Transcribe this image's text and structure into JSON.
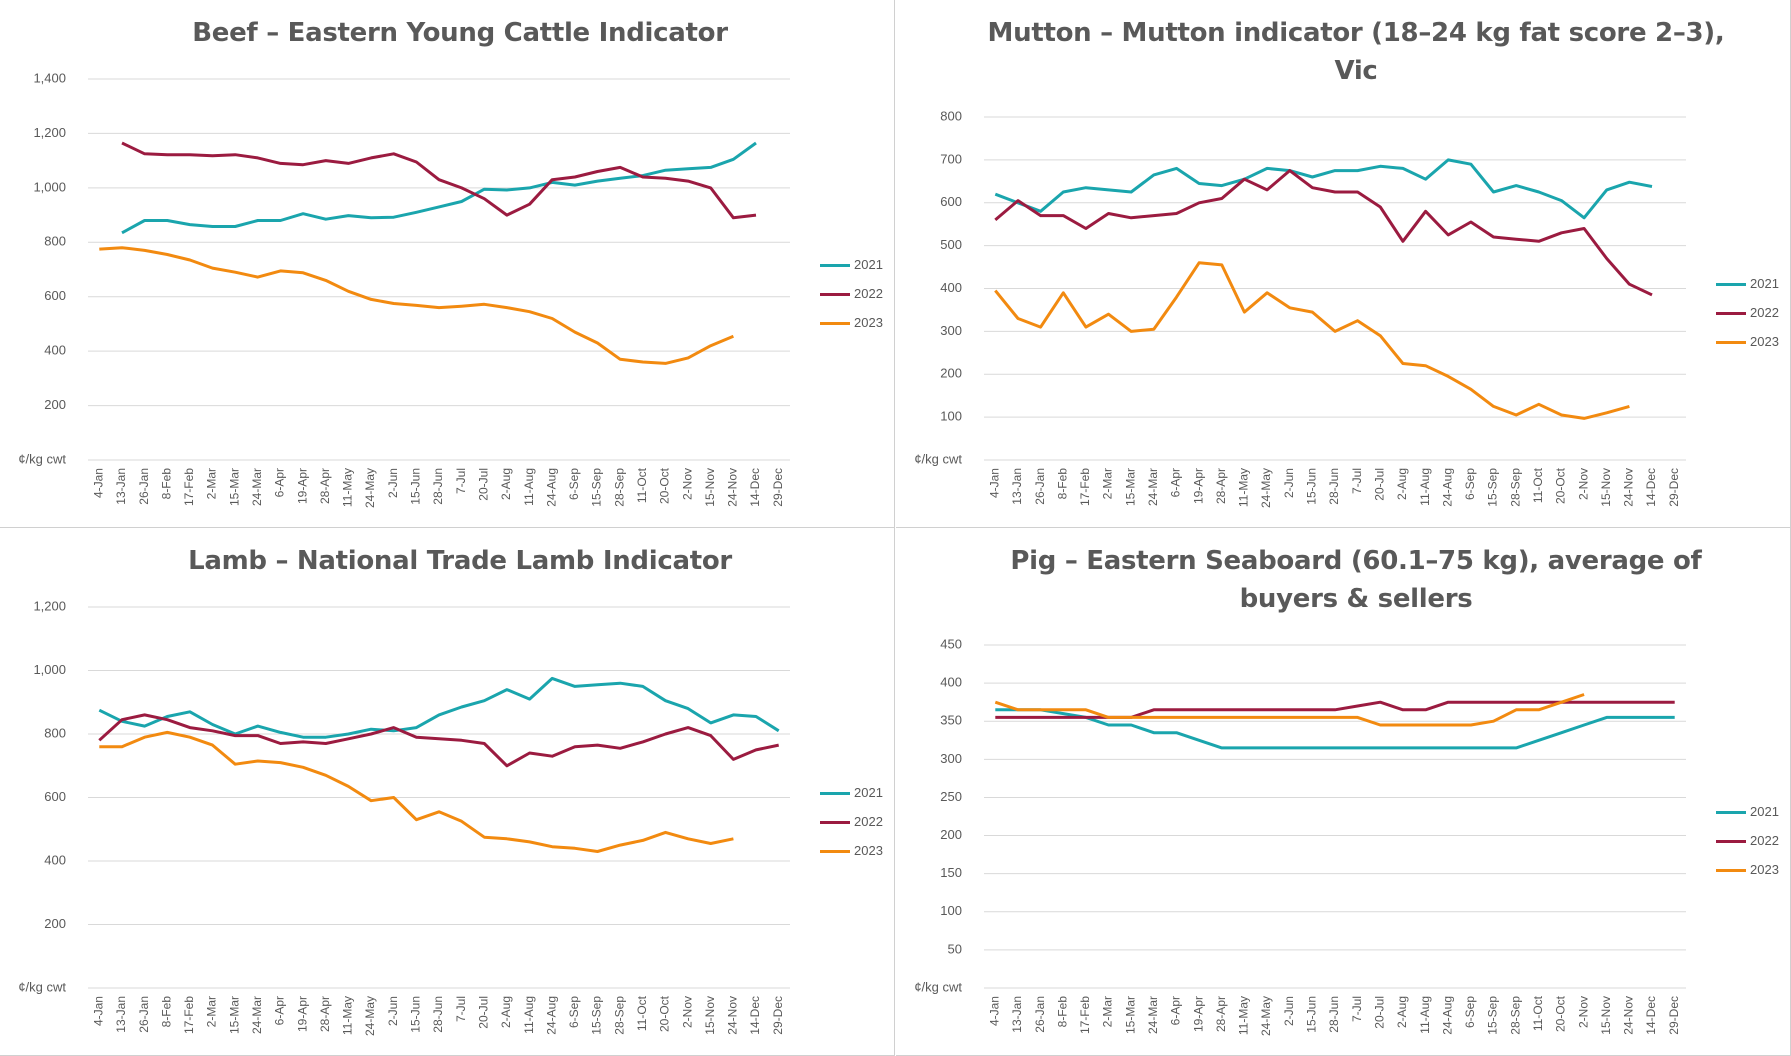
{
  "chart_data": [
    {
      "type": "line",
      "title": "Beef – Eastern Young Cattle Indicator",
      "categories": [
        "4-Jan",
        "13-Jan",
        "26-Jan",
        "8-Feb",
        "17-Feb",
        "2-Mar",
        "15-Mar",
        "24-Mar",
        "6-Apr",
        "19-Apr",
        "28-Apr",
        "11-May",
        "24-May",
        "2-Jun",
        "15-Jun",
        "28-Jun",
        "7-Jul",
        "20-Jul",
        "2-Aug",
        "11-Aug",
        "24-Aug",
        "6-Sep",
        "15-Sep",
        "28-Sep",
        "11-Oct",
        "20-Oct",
        "2-Nov",
        "15-Nov",
        "24-Nov",
        "14-Dec",
        "29-Dec"
      ],
      "series": [
        {
          "name": "2021",
          "color": "#1aa5ad",
          "values": [
            null,
            835,
            880,
            880,
            865,
            858,
            858,
            880,
            880,
            905,
            885,
            898,
            890,
            892,
            910,
            930,
            950,
            995,
            992,
            1000,
            1020,
            1010,
            1025,
            1035,
            1045,
            1065,
            1070,
            1075,
            1105,
            1165,
            null
          ]
        },
        {
          "name": "2022",
          "color": "#9b1b40",
          "values": [
            null,
            1165,
            1125,
            1122,
            1122,
            1118,
            1122,
            1110,
            1090,
            1085,
            1100,
            1090,
            1110,
            1125,
            1095,
            1030,
            1000,
            960,
            900,
            940,
            1030,
            1040,
            1060,
            1075,
            1040,
            1035,
            1025,
            1000,
            890,
            900,
            null
          ]
        },
        {
          "name": "2023",
          "color": "#f28a10",
          "values": [
            775,
            780,
            770,
            755,
            735,
            705,
            690,
            672,
            695,
            688,
            660,
            620,
            590,
            575,
            568,
            560,
            565,
            572,
            560,
            545,
            520,
            470,
            430,
            370,
            360,
            355,
            375,
            420,
            455,
            null,
            null
          ]
        }
      ],
      "ylim": [
        0,
        1400
      ],
      "yticks": [
        {
          "value": 0,
          "label": "¢/kg cwt"
        },
        {
          "value": 200,
          "label": "200"
        },
        {
          "value": 400,
          "label": "400"
        },
        {
          "value": 600,
          "label": "600"
        },
        {
          "value": 800,
          "label": "800"
        },
        {
          "value": 1000,
          "label": "1,000"
        },
        {
          "value": 1200,
          "label": "1,200"
        },
        {
          "value": 1400,
          "label": "1,400"
        }
      ],
      "grid": true,
      "legend": "right"
    },
    {
      "type": "line",
      "title": "Mutton – Mutton indicator (18–24 kg fat score 2–3), Vic",
      "categories": [
        "4-Jan",
        "13-Jan",
        "26-Jan",
        "8-Feb",
        "17-Feb",
        "2-Mar",
        "15-Mar",
        "24-Mar",
        "6-Apr",
        "19-Apr",
        "28-Apr",
        "11-May",
        "24-May",
        "2-Jun",
        "15-Jun",
        "28-Jun",
        "7-Jul",
        "20-Jul",
        "2-Aug",
        "11-Aug",
        "24-Aug",
        "6-Sep",
        "15-Sep",
        "28-Sep",
        "11-Oct",
        "20-Oct",
        "2-Nov",
        "15-Nov",
        "24-Nov",
        "14-Dec",
        "29-Dec"
      ],
      "series": [
        {
          "name": "2021",
          "color": "#1aa5ad",
          "values": [
            620,
            600,
            580,
            625,
            635,
            630,
            625,
            665,
            680,
            645,
            640,
            655,
            680,
            675,
            660,
            675,
            675,
            685,
            680,
            655,
            700,
            690,
            625,
            640,
            625,
            605,
            565,
            630,
            648,
            638,
            null
          ]
        },
        {
          "name": "2022",
          "color": "#9b1b40",
          "values": [
            560,
            605,
            570,
            570,
            540,
            575,
            565,
            570,
            575,
            600,
            610,
            655,
            630,
            675,
            635,
            625,
            625,
            590,
            510,
            580,
            525,
            555,
            520,
            515,
            510,
            530,
            540,
            470,
            410,
            385,
            null
          ]
        },
        {
          "name": "2023",
          "color": "#f28a10",
          "values": [
            395,
            330,
            310,
            390,
            310,
            340,
            300,
            305,
            380,
            460,
            455,
            345,
            390,
            355,
            345,
            300,
            325,
            290,
            225,
            220,
            195,
            165,
            125,
            105,
            130,
            105,
            97,
            110,
            125,
            null,
            null
          ]
        }
      ],
      "ylim": [
        0,
        800
      ],
      "yticks": [
        {
          "value": 0,
          "label": "¢/kg cwt"
        },
        100,
        200,
        300,
        400,
        500,
        600,
        700,
        800
      ],
      "grid": true,
      "legend": "right"
    },
    {
      "type": "line",
      "title": "Lamb – National Trade Lamb Indicator",
      "categories": [
        "4-Jan",
        "13-Jan",
        "26-Jan",
        "8-Feb",
        "17-Feb",
        "2-Mar",
        "15-Mar",
        "24-Mar",
        "6-Apr",
        "19-Apr",
        "28-Apr",
        "11-May",
        "24-May",
        "2-Jun",
        "15-Jun",
        "28-Jun",
        "7-Jul",
        "20-Jul",
        "2-Aug",
        "11-Aug",
        "24-Aug",
        "6-Sep",
        "15-Sep",
        "28-Sep",
        "11-Oct",
        "20-Oct",
        "2-Nov",
        "15-Nov",
        "24-Nov",
        "14-Dec",
        "29-Dec"
      ],
      "series": [
        {
          "name": "2021",
          "color": "#1aa5ad",
          "values": [
            875,
            840,
            825,
            855,
            870,
            830,
            800,
            825,
            805,
            790,
            790,
            800,
            815,
            810,
            820,
            860,
            885,
            905,
            940,
            910,
            975,
            950,
            955,
            960,
            950,
            905,
            880,
            835,
            860,
            855,
            810
          ]
        },
        {
          "name": "2022",
          "color": "#9b1b40",
          "values": [
            780,
            845,
            860,
            845,
            820,
            810,
            795,
            795,
            770,
            775,
            770,
            785,
            800,
            820,
            790,
            785,
            780,
            770,
            700,
            740,
            730,
            760,
            765,
            755,
            775,
            800,
            820,
            795,
            720,
            750,
            765
          ]
        },
        {
          "name": "2023",
          "color": "#f28a10",
          "values": [
            760,
            760,
            790,
            805,
            790,
            765,
            705,
            715,
            710,
            695,
            670,
            635,
            590,
            600,
            530,
            555,
            525,
            475,
            470,
            460,
            445,
            440,
            430,
            450,
            465,
            490,
            470,
            455,
            470,
            null,
            null
          ]
        }
      ],
      "ylim": [
        0,
        1200
      ],
      "yticks": [
        {
          "value": 0,
          "label": "¢/kg cwt"
        },
        {
          "value": 200,
          "label": "200"
        },
        {
          "value": 400,
          "label": "400"
        },
        {
          "value": 600,
          "label": "600"
        },
        {
          "value": 800,
          "label": "800"
        },
        {
          "value": 1000,
          "label": "1,000"
        },
        {
          "value": 1200,
          "label": "1,200"
        }
      ],
      "grid": true,
      "legend": "right"
    },
    {
      "type": "line",
      "title": "Pig – Eastern Seaboard (60.1–75 kg), average of buyers & sellers",
      "categories": [
        "4-Jan",
        "13-Jan",
        "26-Jan",
        "8-Feb",
        "17-Feb",
        "2-Mar",
        "15-Mar",
        "24-Mar",
        "6-Apr",
        "19-Apr",
        "28-Apr",
        "11-May",
        "24-May",
        "2-Jun",
        "15-Jun",
        "28-Jun",
        "7-Jul",
        "20-Jul",
        "2-Aug",
        "11-Aug",
        "24-Aug",
        "6-Sep",
        "15-Sep",
        "28-Sep",
        "11-Oct",
        "20-Oct",
        "2-Nov",
        "15-Nov",
        "24-Nov",
        "14-Dec",
        "29-Dec"
      ],
      "series": [
        {
          "name": "2021",
          "color": "#1aa5ad",
          "values": [
            365,
            365,
            365,
            360,
            355,
            345,
            345,
            335,
            335,
            325,
            315,
            315,
            315,
            315,
            315,
            315,
            315,
            315,
            315,
            315,
            315,
            315,
            315,
            315,
            325,
            335,
            345,
            355,
            355,
            355,
            355
          ]
        },
        {
          "name": "2022",
          "color": "#9b1b40",
          "values": [
            355,
            355,
            355,
            355,
            355,
            355,
            355,
            365,
            365,
            365,
            365,
            365,
            365,
            365,
            365,
            365,
            370,
            375,
            365,
            365,
            375,
            375,
            375,
            375,
            375,
            375,
            375,
            375,
            375,
            375,
            375
          ]
        },
        {
          "name": "2023",
          "color": "#f28a10",
          "values": [
            375,
            365,
            365,
            365,
            365,
            355,
            355,
            355,
            355,
            355,
            355,
            355,
            355,
            355,
            355,
            355,
            355,
            345,
            345,
            345,
            345,
            345,
            350,
            365,
            365,
            375,
            385,
            null,
            null,
            null,
            null
          ]
        }
      ],
      "ylim": [
        0,
        450
      ],
      "yticks": [
        {
          "value": 0,
          "label": "¢/kg cwt"
        },
        50,
        100,
        150,
        200,
        250,
        300,
        350,
        400,
        450
      ],
      "grid": true,
      "legend": "right"
    }
  ]
}
